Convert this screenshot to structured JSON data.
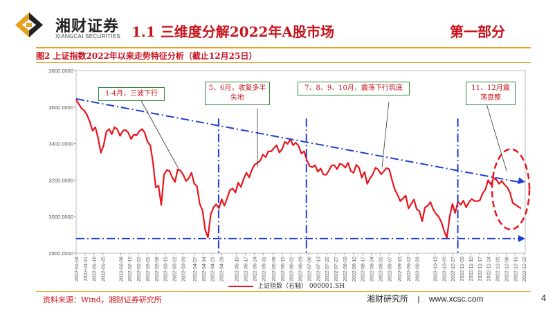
{
  "header": {
    "logo_cn": "湘财证券",
    "logo_en": "XIANGCAI SECURITIES",
    "section_title": "1.1 三维度分解2022年A股市场",
    "part_label": "第一部分"
  },
  "figure": {
    "title": "图2 上证指数2022年以来走势特征分析（截止12月25日）"
  },
  "footer": {
    "source": "资料来源：Wind，湘财证券研究所",
    "org": "湘财研究所",
    "separator": "|",
    "website": "www.xcsc.com",
    "page": "4"
  },
  "annotations": [
    {
      "text": "1-4月，三波下行"
    },
    {
      "text": "5、6月，收复多半失地"
    },
    {
      "text": "7、8、9、10月，震荡下行筑底"
    },
    {
      "text": "11、12月震荡盘整"
    }
  ],
  "colors": {
    "series_line": "#e8141c",
    "trend_line": "#1f3bd6",
    "annotation_border": "#2e8b3b",
    "accent": "#c8131c",
    "rule": "#e8a020"
  },
  "chart_data": {
    "type": "line",
    "title": "",
    "xlabel": "",
    "ylabel": "",
    "ylim": [
      2800,
      3800
    ],
    "yticks": [
      "2800.0000",
      "3000.0000",
      "3200.0000",
      "3400.0000",
      "3600.0000",
      "3800.0000"
    ],
    "ytick_values": [
      2800,
      3000,
      3200,
      3400,
      3600,
      3800
    ],
    "xticks": [
      "2022-01-04",
      "2022-01-11",
      "2022-01-18",
      "2022-01-25",
      "2022-02-08",
      "2022-02-15",
      "2022-02-22",
      "2022-03-01",
      "2022-03-08",
      "2022-03-15",
      "2022-03-22",
      "2022-03-29",
      "2022-04-07",
      "2022-04-14",
      "2022-04-21",
      "2022-04-28",
      "2022-05-10",
      "2022-05-17",
      "2022-05-24",
      "2022-05-31",
      "2022-06-08",
      "2022-06-15",
      "2022-06-22",
      "2022-06-29",
      "2022-07-06",
      "2022-07-13",
      "2022-07-20",
      "2022-07-27",
      "2022-08-03",
      "2022-08-10",
      "2022-08-17",
      "2022-08-24",
      "2022-08-31",
      "2022-09-07",
      "2022-09-15",
      "2022-09-22",
      "2022-09-29",
      "2022-10-13",
      "2022-10-20",
      "2022-10-27",
      "2022-11-03",
      "2022-11-10",
      "2022-11-17",
      "2022-11-24",
      "2022-12-01",
      "2022-12-08",
      "2022-12-15",
      "2022-12-22"
    ],
    "series": [
      {
        "name": "上证指数（右轴） 000001.SH",
        "values": [
          3640,
          3615,
          3593,
          3580,
          3556,
          3520,
          3470,
          3490,
          3430,
          3350,
          3390,
          3465,
          3480,
          3452,
          3490,
          3478,
          3442,
          3470,
          3475,
          3460,
          3425,
          3450,
          3445,
          3468,
          3480,
          3460,
          3410,
          3390,
          3296,
          3160,
          3170,
          3064,
          3230,
          3255,
          3250,
          3215,
          3190,
          3260,
          3252,
          3230,
          3195,
          3210,
          3240,
          3181,
          3167,
          3070,
          3035,
          2928,
          2886,
          3012,
          3050,
          3068,
          3046,
          3095,
          3060,
          3102,
          3146,
          3154,
          3132,
          3186,
          3162,
          3207,
          3241,
          3215,
          3257,
          3285,
          3294,
          3306,
          3340,
          3326,
          3358,
          3357,
          3375,
          3391,
          3351,
          3370,
          3410,
          3398,
          3424,
          3391,
          3405,
          3388,
          3346,
          3358,
          3309,
          3277,
          3271,
          3282,
          3246,
          3264,
          3231,
          3229,
          3252,
          3280,
          3282,
          3260,
          3290,
          3284,
          3268,
          3295,
          3250,
          3240,
          3284,
          3268,
          3214,
          3245,
          3180,
          3210,
          3232,
          3268,
          3258,
          3232,
          3248,
          3266,
          3260,
          3200,
          3150,
          3120,
          3085,
          3100,
          3115,
          3045,
          3070,
          3094,
          3040,
          3030,
          2975,
          3050,
          3060,
          3080,
          3040,
          3015,
          3000,
          2969,
          2920,
          2885,
          3000,
          3070,
          3020,
          3082,
          3065,
          3088,
          3051,
          3079,
          3097,
          3086,
          3085,
          3090,
          3127,
          3149,
          3200,
          3176,
          3211,
          3202,
          3180,
          3195,
          3175,
          3160,
          3130,
          3074,
          3065,
          3054,
          3045
        ]
      }
    ],
    "trend_lines": [
      {
        "from": {
          "x": "2022-01-04",
          "y": 3645
        },
        "to": {
          "x": "2022-12-23",
          "y": 3190
        }
      },
      {
        "from": {
          "x": "2022-01-04",
          "y": 2880
        },
        "to": {
          "x": "2022-12-23",
          "y": 2880
        }
      }
    ],
    "vertical_markers": [
      "2022-04-26",
      "2022-07-04",
      "2022-10-31"
    ],
    "highlight_region": {
      "from": "2022-11-28",
      "to": "2022-12-23"
    },
    "grid": false,
    "legend": "bottom"
  }
}
